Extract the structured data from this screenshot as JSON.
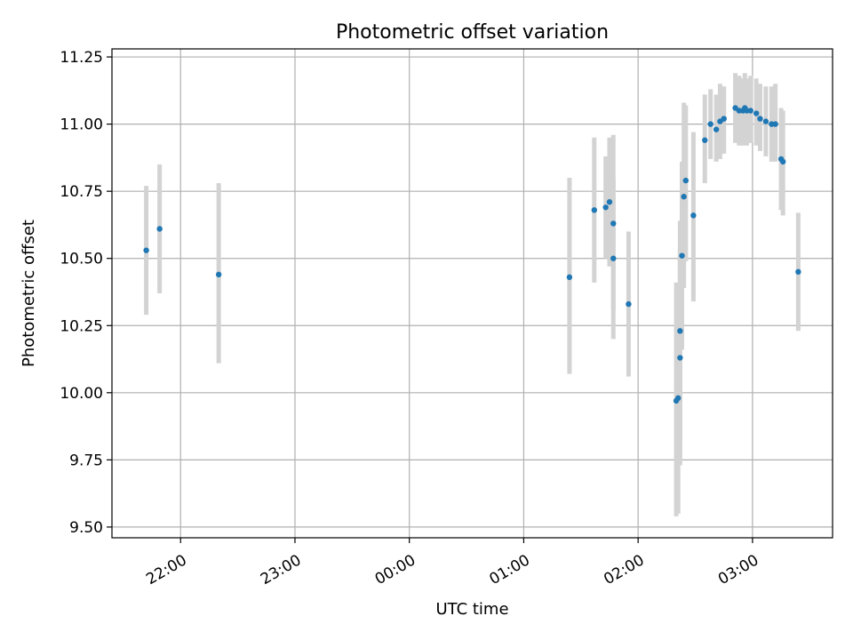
{
  "chart_data": {
    "type": "scatter",
    "title": "Photometric offset variation",
    "xlabel": "UTC time",
    "ylabel": "Photometric offset",
    "x_unit": "UTC time (hours:minutes)",
    "xlim": [
      "21:24",
      "03:42"
    ],
    "ylim": [
      9.46,
      11.28
    ],
    "grid": true,
    "x_ticks": [
      {
        "value": "22:00",
        "label": "22:00"
      },
      {
        "value": "23:00",
        "label": "23:00"
      },
      {
        "value": "24:00",
        "label": "00:00"
      },
      {
        "value": "25:00",
        "label": "01:00"
      },
      {
        "value": "26:00",
        "label": "02:00"
      },
      {
        "value": "27:00",
        "label": "03:00"
      }
    ],
    "y_ticks": [
      {
        "value": 9.5,
        "label": "9.50"
      },
      {
        "value": 9.75,
        "label": "9.75"
      },
      {
        "value": 10.0,
        "label": "10.00"
      },
      {
        "value": 10.25,
        "label": "10.25"
      },
      {
        "value": 10.5,
        "label": "10.50"
      },
      {
        "value": 10.75,
        "label": "10.75"
      },
      {
        "value": 11.0,
        "label": "11.00"
      },
      {
        "value": 11.25,
        "label": "11.25"
      }
    ],
    "colors": {
      "point": "#1f77b4",
      "errorbar": "#d3d3d3",
      "grid": "#b0b0b0"
    },
    "points": [
      {
        "x": "21:42",
        "y": 10.53,
        "lo": 10.29,
        "hi": 10.77
      },
      {
        "x": "21:49",
        "y": 10.61,
        "lo": 10.37,
        "hi": 10.85
      },
      {
        "x": "22:20",
        "y": 10.44,
        "lo": 10.11,
        "hi": 10.78
      },
      {
        "x": "01:24",
        "y": 10.43,
        "lo": 10.07,
        "hi": 10.8
      },
      {
        "x": "01:37",
        "y": 10.68,
        "lo": 10.41,
        "hi": 10.95
      },
      {
        "x": "01:43",
        "y": 10.69,
        "lo": 10.5,
        "hi": 10.88
      },
      {
        "x": "01:45",
        "y": 10.71,
        "lo": 10.47,
        "hi": 10.95
      },
      {
        "x": "01:47",
        "y": 10.63,
        "lo": 10.31,
        "hi": 10.96
      },
      {
        "x": "01:47",
        "y": 10.5,
        "lo": 10.2,
        "hi": 10.8
      },
      {
        "x": "01:55",
        "y": 10.33,
        "lo": 10.06,
        "hi": 10.6
      },
      {
        "x": "02:20",
        "y": 9.97,
        "lo": 9.54,
        "hi": 10.41
      },
      {
        "x": "02:21",
        "y": 9.98,
        "lo": 9.55,
        "hi": 10.41
      },
      {
        "x": "02:22",
        "y": 10.13,
        "lo": 9.73,
        "hi": 10.54
      },
      {
        "x": "02:22",
        "y": 10.23,
        "lo": 9.82,
        "hi": 10.64
      },
      {
        "x": "02:23",
        "y": 10.51,
        "lo": 10.16,
        "hi": 10.86
      },
      {
        "x": "02:24",
        "y": 10.73,
        "lo": 10.39,
        "hi": 11.08
      },
      {
        "x": "02:25",
        "y": 10.79,
        "lo": 10.49,
        "hi": 11.07
      },
      {
        "x": "02:29",
        "y": 10.66,
        "lo": 10.34,
        "hi": 10.97
      },
      {
        "x": "02:35",
        "y": 10.94,
        "lo": 10.78,
        "hi": 11.11
      },
      {
        "x": "02:38",
        "y": 11.0,
        "lo": 10.87,
        "hi": 11.13
      },
      {
        "x": "02:41",
        "y": 10.98,
        "lo": 10.86,
        "hi": 11.11
      },
      {
        "x": "02:43",
        "y": 11.01,
        "lo": 10.87,
        "hi": 11.15
      },
      {
        "x": "02:45",
        "y": 11.02,
        "lo": 10.89,
        "hi": 11.14
      },
      {
        "x": "02:51",
        "y": 11.06,
        "lo": 10.93,
        "hi": 11.19
      },
      {
        "x": "02:53",
        "y": 11.05,
        "lo": 10.92,
        "hi": 11.18
      },
      {
        "x": "02:55",
        "y": 11.05,
        "lo": 10.92,
        "hi": 11.17
      },
      {
        "x": "02:56",
        "y": 11.06,
        "lo": 10.93,
        "hi": 11.19
      },
      {
        "x": "02:57",
        "y": 11.05,
        "lo": 10.92,
        "hi": 11.17
      },
      {
        "x": "02:59",
        "y": 11.05,
        "lo": 10.93,
        "hi": 11.18
      },
      {
        "x": "03:02",
        "y": 11.04,
        "lo": 10.92,
        "hi": 11.17
      },
      {
        "x": "03:04",
        "y": 11.02,
        "lo": 10.9,
        "hi": 11.15
      },
      {
        "x": "03:07",
        "y": 11.01,
        "lo": 10.88,
        "hi": 11.14
      },
      {
        "x": "03:10",
        "y": 11.0,
        "lo": 10.86,
        "hi": 11.14
      },
      {
        "x": "03:12",
        "y": 11.0,
        "lo": 10.86,
        "hi": 11.15
      },
      {
        "x": "03:15",
        "y": 10.87,
        "lo": 10.68,
        "hi": 11.06
      },
      {
        "x": "03:16",
        "y": 10.86,
        "lo": 10.66,
        "hi": 11.05
      },
      {
        "x": "03:24",
        "y": 10.45,
        "lo": 10.23,
        "hi": 10.67
      }
    ]
  }
}
